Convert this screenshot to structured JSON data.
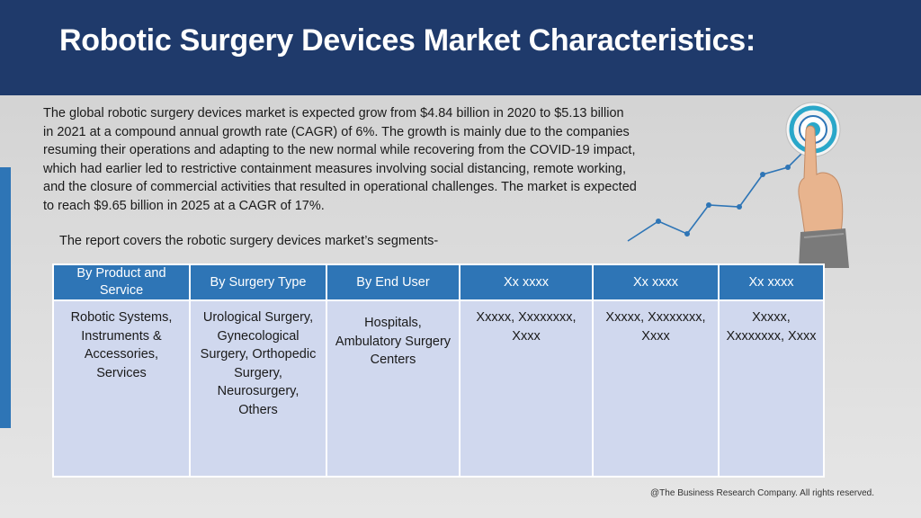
{
  "header": {
    "title": "Robotic Surgery Devices Market Characteristics:"
  },
  "body": {
    "paragraph": "The global robotic surgery devices market is expected grow from $4.84 billion in 2020 to $5.13 billion in 2021 at a compound annual growth rate (CAGR) of 6%. The growth is mainly due to the companies resuming their operations and adapting to the new normal while recovering from the COVID-19 impact, which had earlier led to restrictive containment measures involving social distancing, remote working, and the closure of commercial activities that resulted in operational challenges. The market is expected to reach $9.65 billion in 2025 at a CAGR of 17%.",
    "segments_intro": "The report covers the robotic surgery devices market’s segments-"
  },
  "table": {
    "headers": [
      "By Product and Service",
      "By Surgery Type",
      "By End User",
      "Xx xxxx",
      "Xx xxxx",
      "Xx xxxx"
    ],
    "cells": [
      "Robotic Systems, Instruments & Accessories, Services",
      "Urological Surgery, Gynecological Surgery, Orthopedic Surgery, Neurosurgery, Others",
      "Hospitals, Ambulatory Surgery Centers",
      "Xxxxx, Xxxxxxxx, Xxxx",
      "Xxxxx, Xxxxxxxx, Xxxx",
      "Xxxxx, Xxxxxxxx, Xxxx"
    ]
  },
  "footer": {
    "copyright": "@The Business Research Company. All rights reserved."
  },
  "colors": {
    "header_bg": "#1f3a6b",
    "table_header_bg": "#2e75b6",
    "table_cell_bg": "#d0d8ee",
    "accent": "#2e75b6"
  },
  "icons": {
    "graphic": "hand-touching-target-growth-graph"
  }
}
